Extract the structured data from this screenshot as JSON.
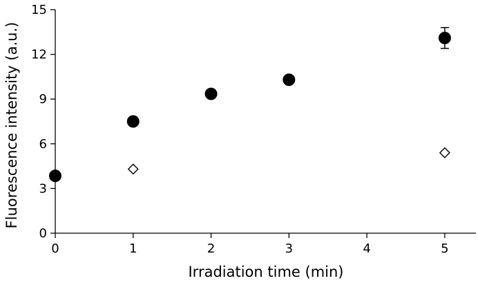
{
  "chart_data": {
    "type": "scatter",
    "title": "",
    "xlabel": "Irradiation time (min)",
    "ylabel": "Fluorescence intensity (a.u.)",
    "xlim": [
      0,
      5.4
    ],
    "ylim": [
      0,
      15
    ],
    "xticks": [
      0,
      1,
      2,
      3,
      4,
      5
    ],
    "yticks": [
      0,
      3,
      6,
      9,
      12,
      15
    ],
    "grid": false,
    "series": [
      {
        "marker": "filled-circle",
        "color": "#000000",
        "x": [
          0,
          1,
          2,
          3,
          5
        ],
        "y": [
          3.85,
          7.5,
          9.35,
          10.3,
          13.1
        ],
        "error": [
          0,
          0.3,
          0,
          0,
          0.7
        ]
      },
      {
        "marker": "open-diamond",
        "color": "#000000",
        "x": [
          1,
          5
        ],
        "y": [
          4.3,
          5.4
        ],
        "error": [
          0,
          0
        ]
      }
    ]
  }
}
